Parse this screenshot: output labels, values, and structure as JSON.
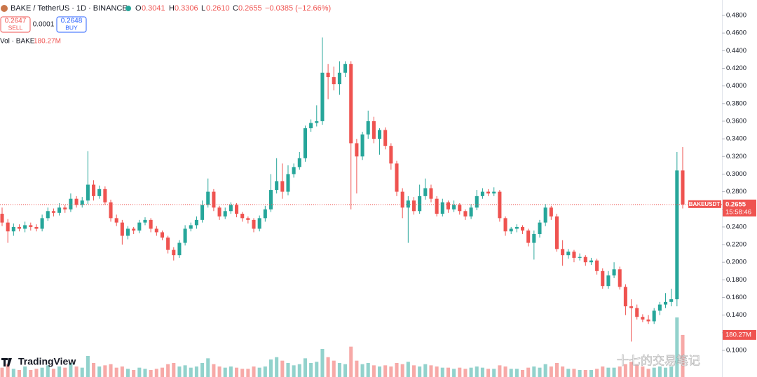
{
  "chart_data": {
    "type": "candlestick",
    "title": "BAKE / TetherUS · 1D · BINANCE",
    "ohlc_names": [
      "O",
      "H",
      "L",
      "C"
    ],
    "ohlc_labels": [
      "0.3041",
      "0.3306",
      "0.2610",
      "0.2655"
    ],
    "change_label": "−0.0385 (−12.66%)",
    "up_color": "#26a69a",
    "down_color": "#ef5350",
    "open": [
      0.255,
      0.245,
      0.235,
      0.24,
      0.238,
      0.242,
      0.24,
      0.238,
      0.25,
      0.258,
      0.256,
      0.262,
      0.26,
      0.272,
      0.265,
      0.27,
      0.288,
      0.275,
      0.283,
      0.268,
      0.25,
      0.245,
      0.23,
      0.238,
      0.236,
      0.245,
      0.248,
      0.238,
      0.234,
      0.228,
      0.214,
      0.208,
      0.222,
      0.238,
      0.242,
      0.248,
      0.265,
      0.28,
      0.262,
      0.252,
      0.258,
      0.265,
      0.255,
      0.25,
      0.248,
      0.238,
      0.25,
      0.26,
      0.282,
      0.292,
      0.28,
      0.3,
      0.308,
      0.318,
      0.352,
      0.358,
      0.36,
      0.415,
      0.41,
      0.402,
      0.415,
      0.425,
      0.335,
      0.32,
      0.345,
      0.36,
      0.34,
      0.35,
      0.332,
      0.312,
      0.28,
      0.262,
      0.27,
      0.258,
      0.275,
      0.284,
      0.272,
      0.255,
      0.268,
      0.26,
      0.265,
      0.258,
      0.252,
      0.262,
      0.275,
      0.28,
      0.278,
      0.28,
      0.25,
      0.235,
      0.238,
      0.24,
      0.236,
      0.222,
      0.232,
      0.245,
      0.262,
      0.252,
      0.215,
      0.208,
      0.212,
      0.205,
      0.206,
      0.2,
      0.202,
      0.19,
      0.173,
      0.185,
      0.192,
      0.172,
      0.15,
      0.148,
      0.138,
      0.135,
      0.133,
      0.145,
      0.152,
      0.155,
      0.158,
      0.3041
    ],
    "high": [
      0.262,
      0.249,
      0.244,
      0.243,
      0.246,
      0.245,
      0.243,
      0.254,
      0.262,
      0.261,
      0.267,
      0.265,
      0.278,
      0.275,
      0.274,
      0.326,
      0.293,
      0.287,
      0.286,
      0.271,
      0.254,
      0.248,
      0.241,
      0.24,
      0.248,
      0.251,
      0.25,
      0.241,
      0.236,
      0.23,
      0.217,
      0.225,
      0.242,
      0.245,
      0.252,
      0.27,
      0.295,
      0.283,
      0.264,
      0.262,
      0.268,
      0.267,
      0.257,
      0.252,
      0.25,
      0.253,
      0.264,
      0.3,
      0.318,
      0.312,
      0.31,
      0.312,
      0.325,
      0.355,
      0.362,
      0.378,
      0.455,
      0.425,
      0.422,
      0.428,
      0.428,
      0.428,
      0.34,
      0.348,
      0.372,
      0.365,
      0.352,
      0.353,
      0.335,
      0.315,
      0.284,
      0.275,
      0.274,
      0.288,
      0.295,
      0.288,
      0.275,
      0.272,
      0.27,
      0.27,
      0.267,
      0.26,
      0.266,
      0.282,
      0.284,
      0.283,
      0.285,
      0.282,
      0.252,
      0.24,
      0.243,
      0.242,
      0.238,
      0.236,
      0.248,
      0.266,
      0.264,
      0.255,
      0.225,
      0.215,
      0.214,
      0.21,
      0.208,
      0.205,
      0.204,
      0.193,
      0.19,
      0.2,
      0.195,
      0.175,
      0.158,
      0.152,
      0.141,
      0.14,
      0.148,
      0.155,
      0.165,
      0.17,
      0.325,
      0.3306
    ],
    "low": [
      0.241,
      0.222,
      0.23,
      0.235,
      0.234,
      0.236,
      0.235,
      0.235,
      0.247,
      0.252,
      0.253,
      0.256,
      0.257,
      0.262,
      0.262,
      0.266,
      0.27,
      0.272,
      0.265,
      0.246,
      0.241,
      0.22,
      0.226,
      0.232,
      0.233,
      0.242,
      0.234,
      0.23,
      0.225,
      0.21,
      0.202,
      0.205,
      0.219,
      0.235,
      0.238,
      0.245,
      0.262,
      0.258,
      0.248,
      0.249,
      0.255,
      0.251,
      0.246,
      0.244,
      0.234,
      0.235,
      0.246,
      0.257,
      0.278,
      0.272,
      0.276,
      0.296,
      0.305,
      0.314,
      0.348,
      0.354,
      0.356,
      0.385,
      0.395,
      0.39,
      0.41,
      0.26,
      0.278,
      0.316,
      0.34,
      0.335,
      0.322,
      0.328,
      0.305,
      0.275,
      0.25,
      0.222,
      0.254,
      0.255,
      0.271,
      0.268,
      0.252,
      0.252,
      0.256,
      0.257,
      0.254,
      0.248,
      0.249,
      0.259,
      0.272,
      0.275,
      0.275,
      0.246,
      0.23,
      0.232,
      0.234,
      0.232,
      0.218,
      0.203,
      0.228,
      0.241,
      0.248,
      0.212,
      0.196,
      0.204,
      0.2,
      0.202,
      0.196,
      0.197,
      0.186,
      0.17,
      0.17,
      0.182,
      0.169,
      0.14,
      0.11,
      0.135,
      0.132,
      0.13,
      0.13,
      0.14,
      0.148,
      0.15,
      0.15,
      0.261
    ],
    "close": [
      0.245,
      0.235,
      0.24,
      0.238,
      0.242,
      0.24,
      0.238,
      0.25,
      0.258,
      0.256,
      0.262,
      0.26,
      0.272,
      0.265,
      0.27,
      0.288,
      0.275,
      0.283,
      0.268,
      0.25,
      0.245,
      0.23,
      0.238,
      0.236,
      0.245,
      0.248,
      0.238,
      0.234,
      0.228,
      0.214,
      0.208,
      0.222,
      0.238,
      0.242,
      0.248,
      0.265,
      0.28,
      0.262,
      0.252,
      0.258,
      0.265,
      0.255,
      0.25,
      0.248,
      0.238,
      0.25,
      0.26,
      0.282,
      0.292,
      0.28,
      0.3,
      0.308,
      0.318,
      0.352,
      0.358,
      0.36,
      0.415,
      0.41,
      0.402,
      0.415,
      0.425,
      0.335,
      0.32,
      0.345,
      0.36,
      0.34,
      0.35,
      0.332,
      0.312,
      0.28,
      0.262,
      0.27,
      0.258,
      0.275,
      0.284,
      0.272,
      0.255,
      0.268,
      0.26,
      0.265,
      0.258,
      0.252,
      0.262,
      0.275,
      0.28,
      0.278,
      0.28,
      0.25,
      0.235,
      0.238,
      0.24,
      0.236,
      0.222,
      0.232,
      0.245,
      0.262,
      0.252,
      0.215,
      0.208,
      0.212,
      0.205,
      0.206,
      0.2,
      0.202,
      0.19,
      0.173,
      0.185,
      0.192,
      0.172,
      0.15,
      0.148,
      0.138,
      0.135,
      0.133,
      0.145,
      0.152,
      0.155,
      0.158,
      0.3041,
      0.2655
    ],
    "volume": {
      "name": "Vol · BAKE",
      "last_label": "180.27M",
      "values": [
        40000000,
        55000000,
        35000000,
        30000000,
        45000000,
        30000000,
        35000000,
        40000000,
        50000000,
        35000000,
        45000000,
        40000000,
        60000000,
        45000000,
        40000000,
        90000000,
        60000000,
        45000000,
        50000000,
        55000000,
        40000000,
        45000000,
        35000000,
        30000000,
        40000000,
        35000000,
        30000000,
        35000000,
        40000000,
        55000000,
        60000000,
        45000000,
        50000000,
        40000000,
        45000000,
        60000000,
        80000000,
        55000000,
        45000000,
        40000000,
        45000000,
        40000000,
        35000000,
        35000000,
        45000000,
        40000000,
        45000000,
        75000000,
        85000000,
        70000000,
        60000000,
        50000000,
        55000000,
        80000000,
        60000000,
        65000000,
        120000000,
        85000000,
        70000000,
        60000000,
        55000000,
        130000000,
        70000000,
        55000000,
        60000000,
        50000000,
        45000000,
        50000000,
        45000000,
        60000000,
        55000000,
        65000000,
        50000000,
        45000000,
        55000000,
        50000000,
        45000000,
        40000000,
        40000000,
        35000000,
        40000000,
        35000000,
        40000000,
        45000000,
        40000000,
        35000000,
        35000000,
        50000000,
        45000000,
        35000000,
        35000000,
        30000000,
        40000000,
        45000000,
        40000000,
        55000000,
        45000000,
        60000000,
        45000000,
        35000000,
        35000000,
        30000000,
        30000000,
        30000000,
        35000000,
        45000000,
        40000000,
        40000000,
        45000000,
        55000000,
        65000000,
        55000000,
        45000000,
        35000000,
        40000000,
        45000000,
        40000000,
        45000000,
        255000000,
        180270000
      ]
    },
    "ylim": [
      0.0698,
      0.4975
    ],
    "yticks": [
      {
        "value": 0.1,
        "label": "0.1000"
      },
      {
        "value": 0.12,
        "label": "0.1200"
      },
      {
        "value": 0.14,
        "label": "0.1400"
      },
      {
        "value": 0.16,
        "label": "0.1600"
      },
      {
        "value": 0.18,
        "label": "0.1800"
      },
      {
        "value": 0.2,
        "label": "0.2000"
      },
      {
        "value": 0.22,
        "label": "0.2200"
      },
      {
        "value": 0.24,
        "label": "0.2400"
      },
      {
        "value": 0.26,
        "label": "0.2600"
      },
      {
        "value": 0.28,
        "label": "0.2800"
      },
      {
        "value": 0.3,
        "label": "0.3000"
      },
      {
        "value": 0.32,
        "label": "0.3200"
      },
      {
        "value": 0.34,
        "label": "0.3400"
      },
      {
        "value": 0.36,
        "label": "0.3600"
      },
      {
        "value": 0.38,
        "label": "0.3800"
      },
      {
        "value": 0.4,
        "label": "0.4000"
      },
      {
        "value": 0.42,
        "label": "0.4200"
      },
      {
        "value": 0.44,
        "label": "0.4400"
      },
      {
        "value": 0.46,
        "label": "0.4600"
      },
      {
        "value": 0.48,
        "label": "0.4800"
      }
    ],
    "symbol_label": "BAKEUSDT",
    "countdown": "15:58:46"
  },
  "trade_panel": {
    "sell_price": 0.2647,
    "sell_label": "SELL",
    "spread": 0.0001,
    "buy_price": 0.2648,
    "buy_label": "BUY"
  },
  "brand": "TradingView",
  "watermark": "十七的交易笔记"
}
